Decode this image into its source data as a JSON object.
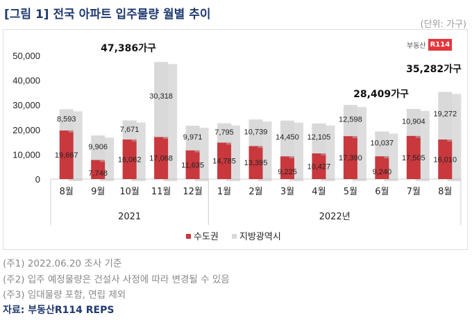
{
  "header": {
    "title": "[그림 1] 전국 아파트 입주물량 월별 추이",
    "unit": "(단위: 가구)"
  },
  "logo": {
    "text": "부동산",
    "badge": "R114"
  },
  "chart_data": {
    "type": "bar",
    "stacked": true,
    "categories": [
      "8월",
      "9월",
      "10월",
      "11월",
      "12월",
      "1월",
      "2월",
      "3월",
      "4월",
      "5월",
      "6월",
      "7월",
      "8월"
    ],
    "groups": [
      {
        "label": "2021",
        "count": 5
      },
      {
        "label": "2022년",
        "count": 8
      }
    ],
    "series": [
      {
        "name": "수도권",
        "color": "#c8383d",
        "values": [
          19667,
          7748,
          16062,
          17068,
          11635,
          14785,
          13395,
          9225,
          10427,
          17390,
          9240,
          17505,
          16010
        ],
        "labels": [
          "19,667",
          "7,748",
          "16,062",
          "17,068",
          "11,635",
          "14,785",
          "13,395",
          "9,225",
          "10,427",
          "17,390",
          "9,240",
          "17,505",
          "16,010"
        ]
      },
      {
        "name": "지방광역시",
        "color": "#d9d9d9",
        "values": [
          8593,
          9906,
          7671,
          30318,
          9971,
          7795,
          10739,
          14450,
          12105,
          12598,
          10037,
          10904,
          19272
        ],
        "labels": [
          "8,593",
          "9,906",
          "7,671",
          "30,318",
          "9,971",
          "7,795",
          "10,739",
          "14,450",
          "12,105",
          "12,598",
          "10,037",
          "10,904",
          "19,272"
        ]
      }
    ],
    "yticks": [
      "0",
      "10,000",
      "20,000",
      "30,000",
      "40,000",
      "50,000"
    ],
    "ylim": [
      0,
      50000
    ],
    "annotations": [
      {
        "text": "47,386가구",
        "index": 3
      },
      {
        "text": "28,409가구",
        "index": 11
      },
      {
        "text": "35,282가구",
        "index": 12
      }
    ],
    "legend": "bottom"
  },
  "notes": [
    "(주1) 2022.06.20 조사 기준",
    "(주2) 입주 예정물량은 건설사 사정에 따라 변경될 수 있음",
    "(주3) 임대물량 포함, 연립 제외"
  ],
  "source": "자료: 부동산R114 REPS"
}
